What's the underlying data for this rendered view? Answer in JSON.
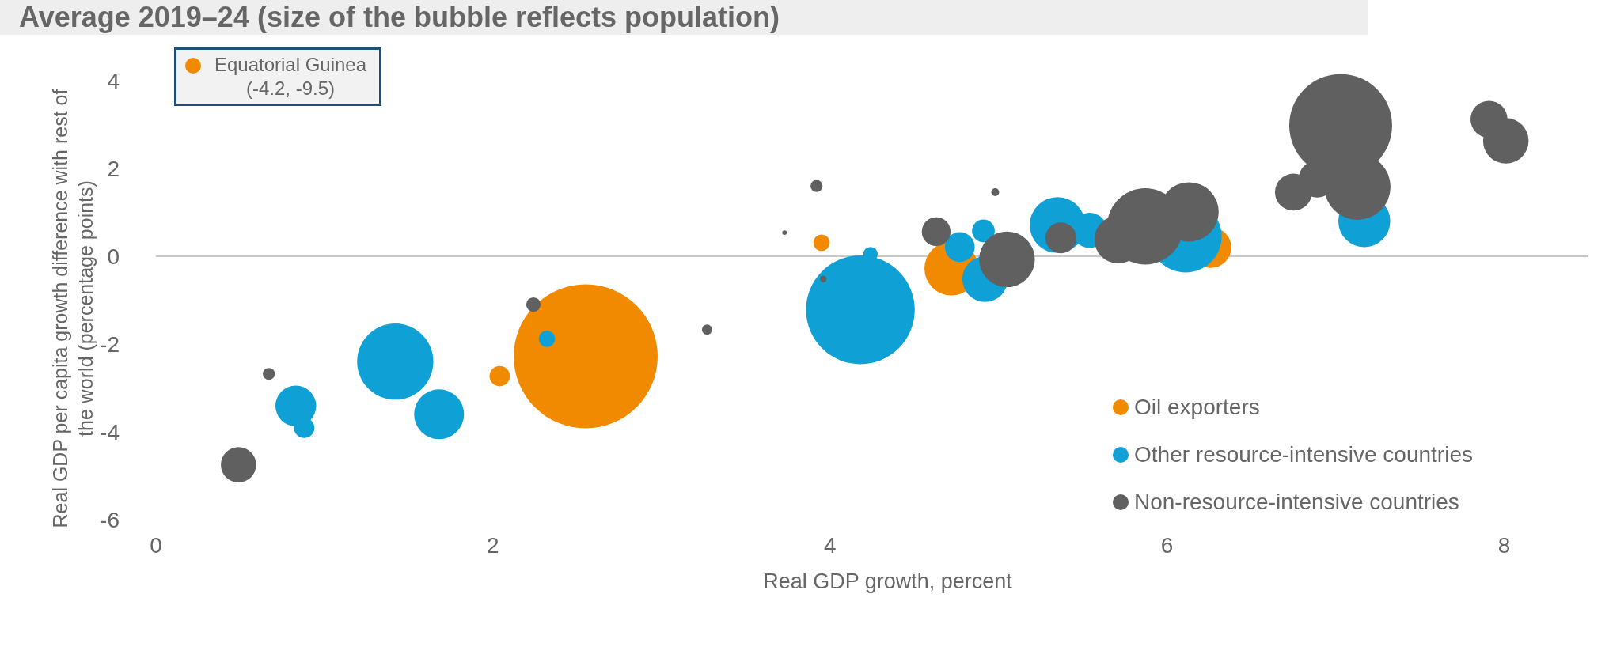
{
  "chart_data": {
    "type": "bubble",
    "title": "Average 2019–24 (size of the bubble reflects population)",
    "xlabel": "Real GDP growth, percent",
    "ylabel": "Real GDP per capita growth difference with rest of the world (percentage points)",
    "annotations": [
      "Equatorial Guinea (-4.2, -9.5)"
    ],
    "series": [
      {
        "name": "Oil exporters",
        "color": "#f28a00",
        "x": [
          2.55,
          2.04,
          3.95,
          4.72,
          6.26
        ],
        "values": [
          -2.28,
          -2.73,
          0.31,
          -0.28,
          0.2
        ],
        "sizes": [
          1,
          0.02,
          0.013,
          0.14,
          0.08
        ]
      },
      {
        "name": "Other resource-intensive countries",
        "color": "#0fa0d6",
        "x": [
          1.42,
          0.83,
          0.88,
          1.68,
          2.32,
          4.18,
          4.77,
          4.91,
          4.92,
          5.35,
          5.54,
          6.11,
          7.17,
          4.24
        ],
        "values": [
          -2.4,
          -3.41,
          -3.91,
          -3.6,
          -1.88,
          -1.22,
          0.21,
          0.58,
          -0.52,
          0.71,
          0.59,
          0.45,
          0.8,
          0.05
        ],
        "sizes": [
          0.28,
          0.08,
          0.02,
          0.12,
          0.013,
          0.57,
          0.043,
          0.025,
          0.1,
          0.15,
          0.06,
          0.25,
          0.13,
          0.01
        ]
      },
      {
        "name": "Non-resource-intensive countries",
        "color": "#606060",
        "x": [
          0.49,
          0.67,
          2.24,
          3.27,
          3.73,
          3.92,
          3.96,
          4.98,
          4.63,
          5.05,
          5.37,
          5.71,
          5.87,
          6.13,
          6.75,
          6.89,
          7.03,
          7.13,
          7.91,
          8.01
        ],
        "values": [
          -4.75,
          -2.68,
          -1.1,
          -1.67,
          0.54,
          1.6,
          -0.52,
          1.46,
          0.56,
          -0.07,
          0.42,
          0.38,
          0.68,
          1.01,
          1.46,
          1.76,
          2.98,
          1.58,
          3.12,
          2.63
        ],
        "sizes": [
          0.06,
          0.007,
          0.01,
          0.005,
          0.001,
          0.007,
          0.002,
          0.003,
          0.04,
          0.15,
          0.046,
          0.11,
          0.28,
          0.17,
          0.066,
          0.066,
          0.51,
          0.21,
          0.066,
          0.1
        ]
      }
    ],
    "xlim": [
      0,
      8.5
    ],
    "xticks": [
      0,
      2,
      4,
      6,
      8
    ],
    "ylim": [
      -6,
      4
    ],
    "yticks": [
      -6,
      -4,
      -2,
      0,
      2,
      4
    ],
    "ref_lines": [
      {
        "axis": "y",
        "value": 0,
        "color": "#c8c8c8"
      }
    ],
    "grid": false,
    "legend": "bottom right",
    "marker": "circle"
  }
}
